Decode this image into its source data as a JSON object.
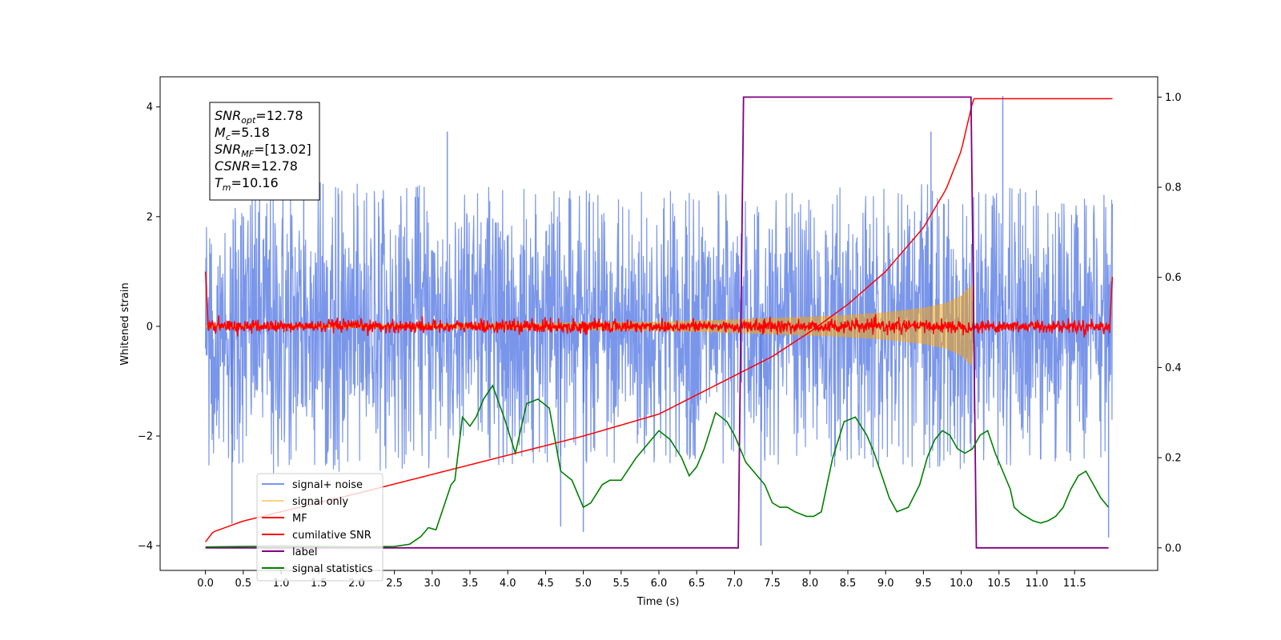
{
  "chart_data": {
    "type": "line",
    "xlabel": "Time (s)",
    "ylabel": "Whitened strain",
    "xlim": [
      -0.6,
      12.6
    ],
    "xticks": [
      0.0,
      0.5,
      1.0,
      1.5,
      2.0,
      2.5,
      3.0,
      3.5,
      4.0,
      4.5,
      5.0,
      5.5,
      6.0,
      6.5,
      7.0,
      7.5,
      8.0,
      8.5,
      9.0,
      9.5,
      10.0,
      10.5,
      11.0,
      11.5
    ],
    "xtick_labels": [
      "0.0",
      "0.5",
      "1.0",
      "1.5",
      "2.0",
      "2.5",
      "3.0",
      "3.5",
      "4.0",
      "4.5",
      "5.0",
      "5.5",
      "6.0",
      "6.5",
      "7.0",
      "7.5",
      "8.0",
      "8.5",
      "9.0",
      "9.5",
      "10.0",
      "10.5",
      "11.0",
      "11.5"
    ],
    "ylim_left": [
      -4.45,
      4.55
    ],
    "yticks_left": [
      -4,
      -2,
      0,
      2,
      4
    ],
    "ytick_labels_left": [
      "−4",
      "−2",
      "0",
      "2",
      "4"
    ],
    "ylim_right": [
      -0.05,
      1.045
    ],
    "yticks_right": [
      0.0,
      0.2,
      0.4,
      0.6,
      0.8,
      1.0
    ],
    "ytick_labels_right": [
      "0.0",
      "0.2",
      "0.4",
      "0.6",
      "0.8",
      "1.0"
    ],
    "grid": false,
    "legend_position": "lower-left",
    "annotation": {
      "lines": [
        {
          "sym": "SNR",
          "sub": "opt",
          "value": "=12.78"
        },
        {
          "sym": "M",
          "sub": "c",
          "value": "=5.18"
        },
        {
          "sym": "SNR",
          "sub": "MF",
          "value": "=[13.02]"
        },
        {
          "sym": "CSNR",
          "sub": "",
          "value": "=12.78"
        },
        {
          "sym": "T",
          "sub": "m",
          "value": "=10.16"
        }
      ]
    },
    "series": [
      {
        "name": "signal+ noise",
        "color": "#4169e1",
        "axis": "left",
        "kind": "noise",
        "envelope": [
          [
            0.0,
            2.6
          ],
          [
            1.0,
            2.7
          ],
          [
            3.0,
            2.6
          ],
          [
            5.0,
            2.5
          ],
          [
            7.0,
            2.5
          ],
          [
            9.0,
            2.6
          ],
          [
            10.0,
            2.6
          ],
          [
            11.0,
            2.5
          ],
          [
            12.0,
            2.4
          ]
        ],
        "spikes": [
          [
            0.35,
            -3.6
          ],
          [
            4.7,
            -3.65
          ],
          [
            5.0,
            -3.75
          ],
          [
            7.35,
            -4.0
          ],
          [
            10.55,
            4.2
          ],
          [
            11.95,
            -3.85
          ],
          [
            1.3,
            3.4
          ],
          [
            3.2,
            3.55
          ],
          [
            9.6,
            3.55
          ]
        ]
      },
      {
        "name": "signal only",
        "color": "#ffa500",
        "axis": "left",
        "kind": "chirp",
        "points": [
          [
            0.0,
            0.02
          ],
          [
            2.0,
            0.03
          ],
          [
            4.0,
            0.05
          ],
          [
            6.0,
            0.08
          ],
          [
            7.0,
            0.12
          ],
          [
            8.0,
            0.17
          ],
          [
            8.5,
            0.2
          ],
          [
            9.0,
            0.25
          ],
          [
            9.5,
            0.33
          ],
          [
            9.8,
            0.42
          ],
          [
            10.0,
            0.55
          ],
          [
            10.1,
            0.7
          ],
          [
            10.15,
            0.75
          ],
          [
            10.18,
            0.0
          ]
        ]
      },
      {
        "name": "MF",
        "color": "#ff0000",
        "axis": "left",
        "kind": "mf",
        "level": 0.0,
        "noise_amp": 0.13,
        "edges": [
          [
            0.0,
            1.0
          ],
          [
            12.0,
            0.9
          ]
        ]
      },
      {
        "name": "cumilative SNR",
        "color": "#ff0000",
        "axis": "left",
        "points": [
          [
            0.0,
            -3.93
          ],
          [
            0.1,
            -3.75
          ],
          [
            0.5,
            -3.55
          ],
          [
            1.0,
            -3.38
          ],
          [
            2.0,
            -3.05
          ],
          [
            3.0,
            -2.7
          ],
          [
            4.0,
            -2.35
          ],
          [
            5.0,
            -2.0
          ],
          [
            6.0,
            -1.6
          ],
          [
            7.0,
            -0.9
          ],
          [
            7.5,
            -0.55
          ],
          [
            8.0,
            -0.1
          ],
          [
            8.5,
            0.4
          ],
          [
            9.0,
            1.0
          ],
          [
            9.5,
            1.8
          ],
          [
            9.8,
            2.5
          ],
          [
            10.0,
            3.2
          ],
          [
            10.16,
            4.15
          ],
          [
            12.0,
            4.15
          ]
        ]
      },
      {
        "name": "label",
        "color": "#800080",
        "axis": "right",
        "points": [
          [
            0.0,
            0.0
          ],
          [
            7.05,
            0.0
          ],
          [
            7.12,
            1.0
          ],
          [
            10.13,
            1.0
          ],
          [
            10.2,
            0.0
          ],
          [
            11.95,
            0.0
          ]
        ]
      },
      {
        "name": "signal statistics",
        "color": "#008000",
        "axis": "right",
        "points": [
          [
            0.0,
            0.002
          ],
          [
            1.0,
            0.004
          ],
          [
            2.0,
            0.002
          ],
          [
            2.5,
            0.003
          ],
          [
            2.7,
            0.008
          ],
          [
            2.85,
            0.025
          ],
          [
            2.95,
            0.045
          ],
          [
            3.05,
            0.04
          ],
          [
            3.15,
            0.09
          ],
          [
            3.25,
            0.14
          ],
          [
            3.3,
            0.15
          ],
          [
            3.4,
            0.29
          ],
          [
            3.5,
            0.27
          ],
          [
            3.58,
            0.29
          ],
          [
            3.68,
            0.33
          ],
          [
            3.8,
            0.36
          ],
          [
            3.95,
            0.29
          ],
          [
            4.1,
            0.21
          ],
          [
            4.25,
            0.32
          ],
          [
            4.4,
            0.33
          ],
          [
            4.55,
            0.31
          ],
          [
            4.7,
            0.17
          ],
          [
            4.85,
            0.15
          ],
          [
            5.0,
            0.09
          ],
          [
            5.1,
            0.1
          ],
          [
            5.25,
            0.14
          ],
          [
            5.35,
            0.15
          ],
          [
            5.5,
            0.15
          ],
          [
            5.7,
            0.2
          ],
          [
            5.85,
            0.23
          ],
          [
            6.0,
            0.26
          ],
          [
            6.15,
            0.24
          ],
          [
            6.3,
            0.2
          ],
          [
            6.4,
            0.16
          ],
          [
            6.5,
            0.18
          ],
          [
            6.6,
            0.22
          ],
          [
            6.75,
            0.3
          ],
          [
            6.9,
            0.28
          ],
          [
            7.0,
            0.25
          ],
          [
            7.15,
            0.19
          ],
          [
            7.25,
            0.17
          ],
          [
            7.4,
            0.14
          ],
          [
            7.5,
            0.1
          ],
          [
            7.6,
            0.09
          ],
          [
            7.7,
            0.09
          ],
          [
            7.8,
            0.08
          ],
          [
            7.95,
            0.07
          ],
          [
            8.05,
            0.07
          ],
          [
            8.15,
            0.08
          ],
          [
            8.3,
            0.2
          ],
          [
            8.45,
            0.28
          ],
          [
            8.6,
            0.29
          ],
          [
            8.75,
            0.25
          ],
          [
            8.85,
            0.21
          ],
          [
            8.95,
            0.16
          ],
          [
            9.05,
            0.11
          ],
          [
            9.15,
            0.08
          ],
          [
            9.3,
            0.09
          ],
          [
            9.45,
            0.14
          ],
          [
            9.55,
            0.2
          ],
          [
            9.65,
            0.24
          ],
          [
            9.75,
            0.26
          ],
          [
            9.85,
            0.25
          ],
          [
            9.95,
            0.22
          ],
          [
            10.05,
            0.21
          ],
          [
            10.15,
            0.22
          ],
          [
            10.25,
            0.25
          ],
          [
            10.35,
            0.26
          ],
          [
            10.45,
            0.21
          ],
          [
            10.55,
            0.17
          ],
          [
            10.65,
            0.13
          ],
          [
            10.7,
            0.09
          ],
          [
            10.8,
            0.075
          ],
          [
            10.95,
            0.06
          ],
          [
            11.05,
            0.055
          ],
          [
            11.15,
            0.06
          ],
          [
            11.25,
            0.07
          ],
          [
            11.35,
            0.09
          ],
          [
            11.45,
            0.13
          ],
          [
            11.55,
            0.16
          ],
          [
            11.65,
            0.17
          ],
          [
            11.75,
            0.14
          ],
          [
            11.85,
            0.11
          ],
          [
            11.95,
            0.09
          ]
        ]
      }
    ]
  },
  "legend": {
    "items": [
      {
        "label": "signal+ noise",
        "color": "#4169e1",
        "opacity": 0.7
      },
      {
        "label": "signal only",
        "color": "#ffa500",
        "opacity": 0.5
      },
      {
        "label": "MF",
        "color": "#ff0000",
        "opacity": 1
      },
      {
        "label": "cumilative SNR",
        "color": "#ff0000",
        "opacity": 1
      },
      {
        "label": "label",
        "color": "#800080",
        "opacity": 1
      },
      {
        "label": "signal statistics",
        "color": "#008000",
        "opacity": 1
      }
    ]
  }
}
